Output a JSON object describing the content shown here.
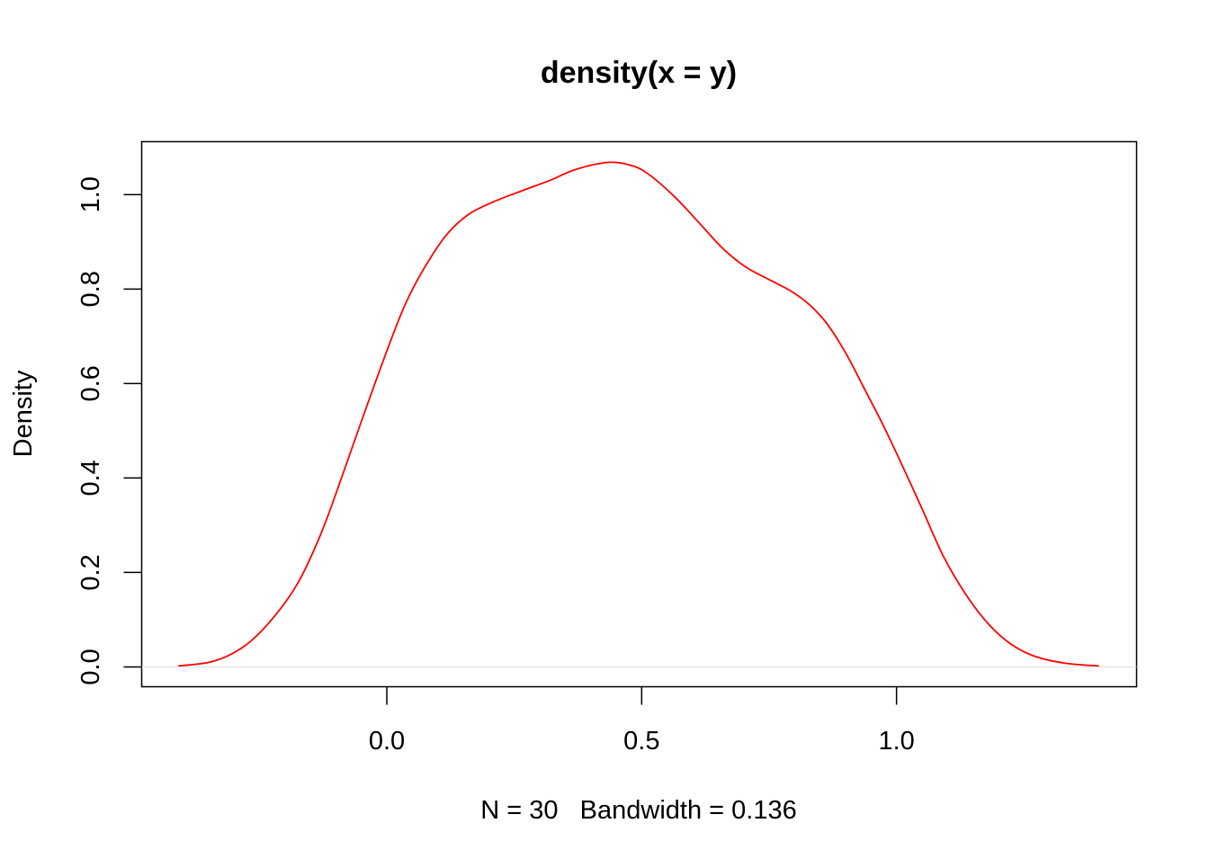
{
  "chart_data": {
    "type": "line",
    "title": "density(x = y)",
    "xlabel": "N = 30   Bandwidth = 0.136",
    "ylabel": "Density",
    "xlim": [
      -0.481,
      1.471
    ],
    "ylim": [
      -0.042,
      1.112
    ],
    "x_ticks": [
      0.0,
      0.5,
      1.0
    ],
    "x_tick_labels": [
      "0.0",
      "0.5",
      "1.0"
    ],
    "y_ticks": [
      0.0,
      0.2,
      0.4,
      0.6,
      0.8,
      1.0
    ],
    "y_tick_labels": [
      "0.0",
      "0.2",
      "0.4",
      "0.6",
      "0.8",
      "1.0"
    ],
    "grid": false,
    "zero_line": true,
    "series": [
      {
        "color": "#ff0000",
        "x": [
          -0.409,
          -0.34,
          -0.282,
          -0.23,
          -0.176,
          -0.13,
          -0.088,
          -0.045,
          0.0,
          0.035,
          0.071,
          0.115,
          0.159,
          0.21,
          0.265,
          0.32,
          0.37,
          0.432,
          0.475,
          0.511,
          0.565,
          0.617,
          0.66,
          0.705,
          0.75,
          0.794,
          0.83,
          0.864,
          0.9,
          0.935,
          0.97,
          1.005,
          1.05,
          1.093,
          1.14,
          1.182,
          1.225,
          1.27,
          1.33,
          1.397
        ],
        "y": [
          0.002,
          0.012,
          0.042,
          0.095,
          0.175,
          0.28,
          0.403,
          0.535,
          0.669,
          0.765,
          0.84,
          0.912,
          0.957,
          0.985,
          1.008,
          1.03,
          1.053,
          1.068,
          1.063,
          1.045,
          0.995,
          0.935,
          0.885,
          0.846,
          0.82,
          0.795,
          0.766,
          0.726,
          0.665,
          0.593,
          0.52,
          0.441,
          0.335,
          0.232,
          0.147,
          0.089,
          0.048,
          0.023,
          0.008,
          0.002
        ]
      }
    ]
  }
}
